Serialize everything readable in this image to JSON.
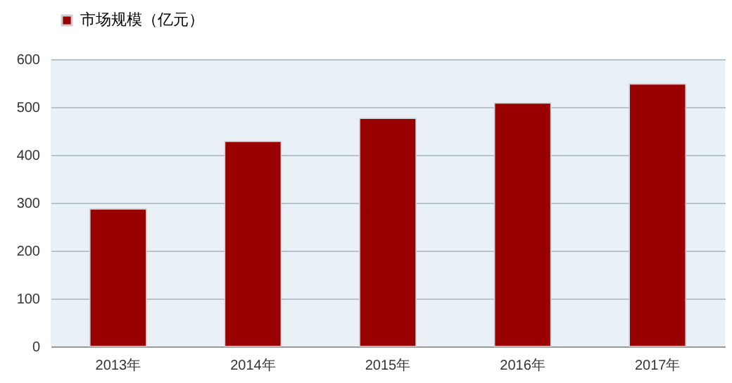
{
  "chart_data": {
    "type": "bar",
    "categories": [
      "2013年",
      "2014年",
      "2015年",
      "2016年",
      "2017年"
    ],
    "series": [
      {
        "name": "市场规模（亿元）",
        "color": "#990000",
        "values": [
          287,
          428,
          476,
          508,
          548
        ]
      }
    ],
    "ylim": [
      0,
      600
    ],
    "yticks": [
      0,
      100,
      200,
      300,
      400,
      500,
      600
    ],
    "grid": "y",
    "legend": "top"
  }
}
